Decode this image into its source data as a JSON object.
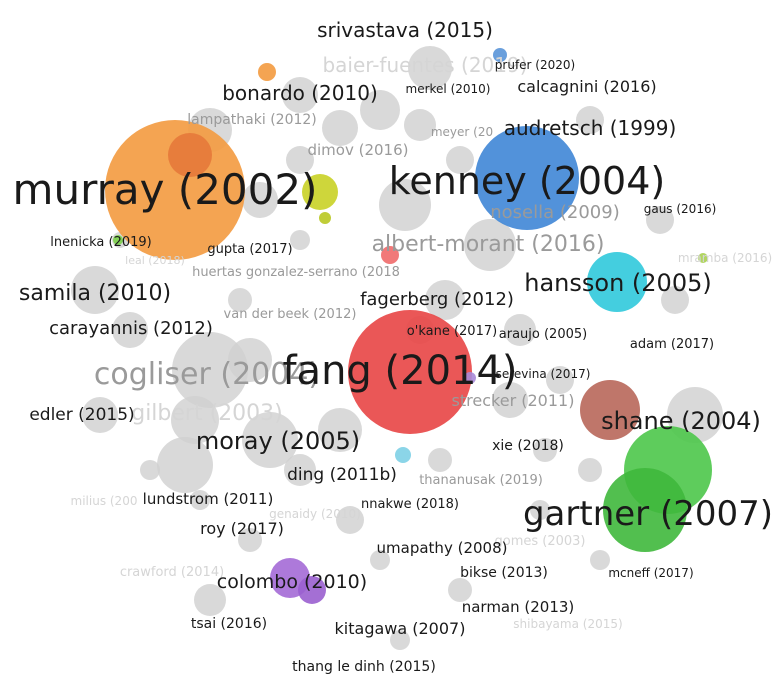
{
  "nodes": [
    {
      "label": "baier-fuentes (2019)"
    },
    {
      "label": "lampathaki (2012)"
    },
    {
      "label": "dimov (2016)"
    },
    {
      "label": "meyer (20"
    },
    {
      "label": "nosella (2009)"
    },
    {
      "label": "huertas gonzalez-serrano (2018"
    },
    {
      "label": "van der beek (2012)"
    },
    {
      "label": "gilbert (2003)"
    },
    {
      "label": "strecker (2011)"
    },
    {
      "label": "thananusak (2019)"
    },
    {
      "label": "genaidy (2010)"
    },
    {
      "label": "crawford (2014)"
    },
    {
      "label": "shibayama (2015)"
    },
    {
      "label": "gomes (2003)"
    },
    {
      "label": "leal (2018)"
    },
    {
      "label": "mramba (2016)"
    },
    {
      "label": "milius (200"
    },
    {
      "label": "albert-morant (2016)"
    },
    {
      "label": "cogliser (2004)"
    },
    {
      "label": "murray (2002)"
    },
    {
      "label": "kenney (2004)"
    },
    {
      "label": "fang (2014)"
    },
    {
      "label": "gartner (2007)"
    },
    {
      "label": "srivastava (2015)"
    },
    {
      "label": "bonardo (2010)"
    },
    {
      "label": "calcagnini (2016)"
    },
    {
      "label": "audretsch (1999)"
    },
    {
      "label": "hansson (2005)"
    },
    {
      "label": "samila (2010)"
    },
    {
      "label": "fagerberg (2012)"
    },
    {
      "label": "carayannis (2012)"
    },
    {
      "label": "shane (2004)"
    },
    {
      "label": "edler (2015)"
    },
    {
      "label": "moray (2005)"
    },
    {
      "label": "ding (2011b)"
    },
    {
      "label": "xie (2018)"
    },
    {
      "label": "lundstrom (2011)"
    },
    {
      "label": "nnakwe (2018)"
    },
    {
      "label": "roy (2017)"
    },
    {
      "label": "umapathy (2008)"
    },
    {
      "label": "colombo (2010)"
    },
    {
      "label": "bikse (2013)"
    },
    {
      "label": "mcneff (2017)"
    },
    {
      "label": "narman (2013)"
    },
    {
      "label": "tsai (2016)"
    },
    {
      "label": "kitagawa (2007)"
    },
    {
      "label": "thang le dinh (2015)"
    },
    {
      "label": "adam (2017)"
    },
    {
      "label": "gaus (2016)"
    },
    {
      "label": "lnenicka (2019)"
    },
    {
      "label": "gupta (2017)"
    },
    {
      "label": "o'kane (2017)"
    },
    {
      "label": "araujo (2005)"
    },
    {
      "label": "serevina (2017)"
    },
    {
      "label": "merkel (2010)"
    },
    {
      "label": "prufer (2020)"
    }
  ]
}
